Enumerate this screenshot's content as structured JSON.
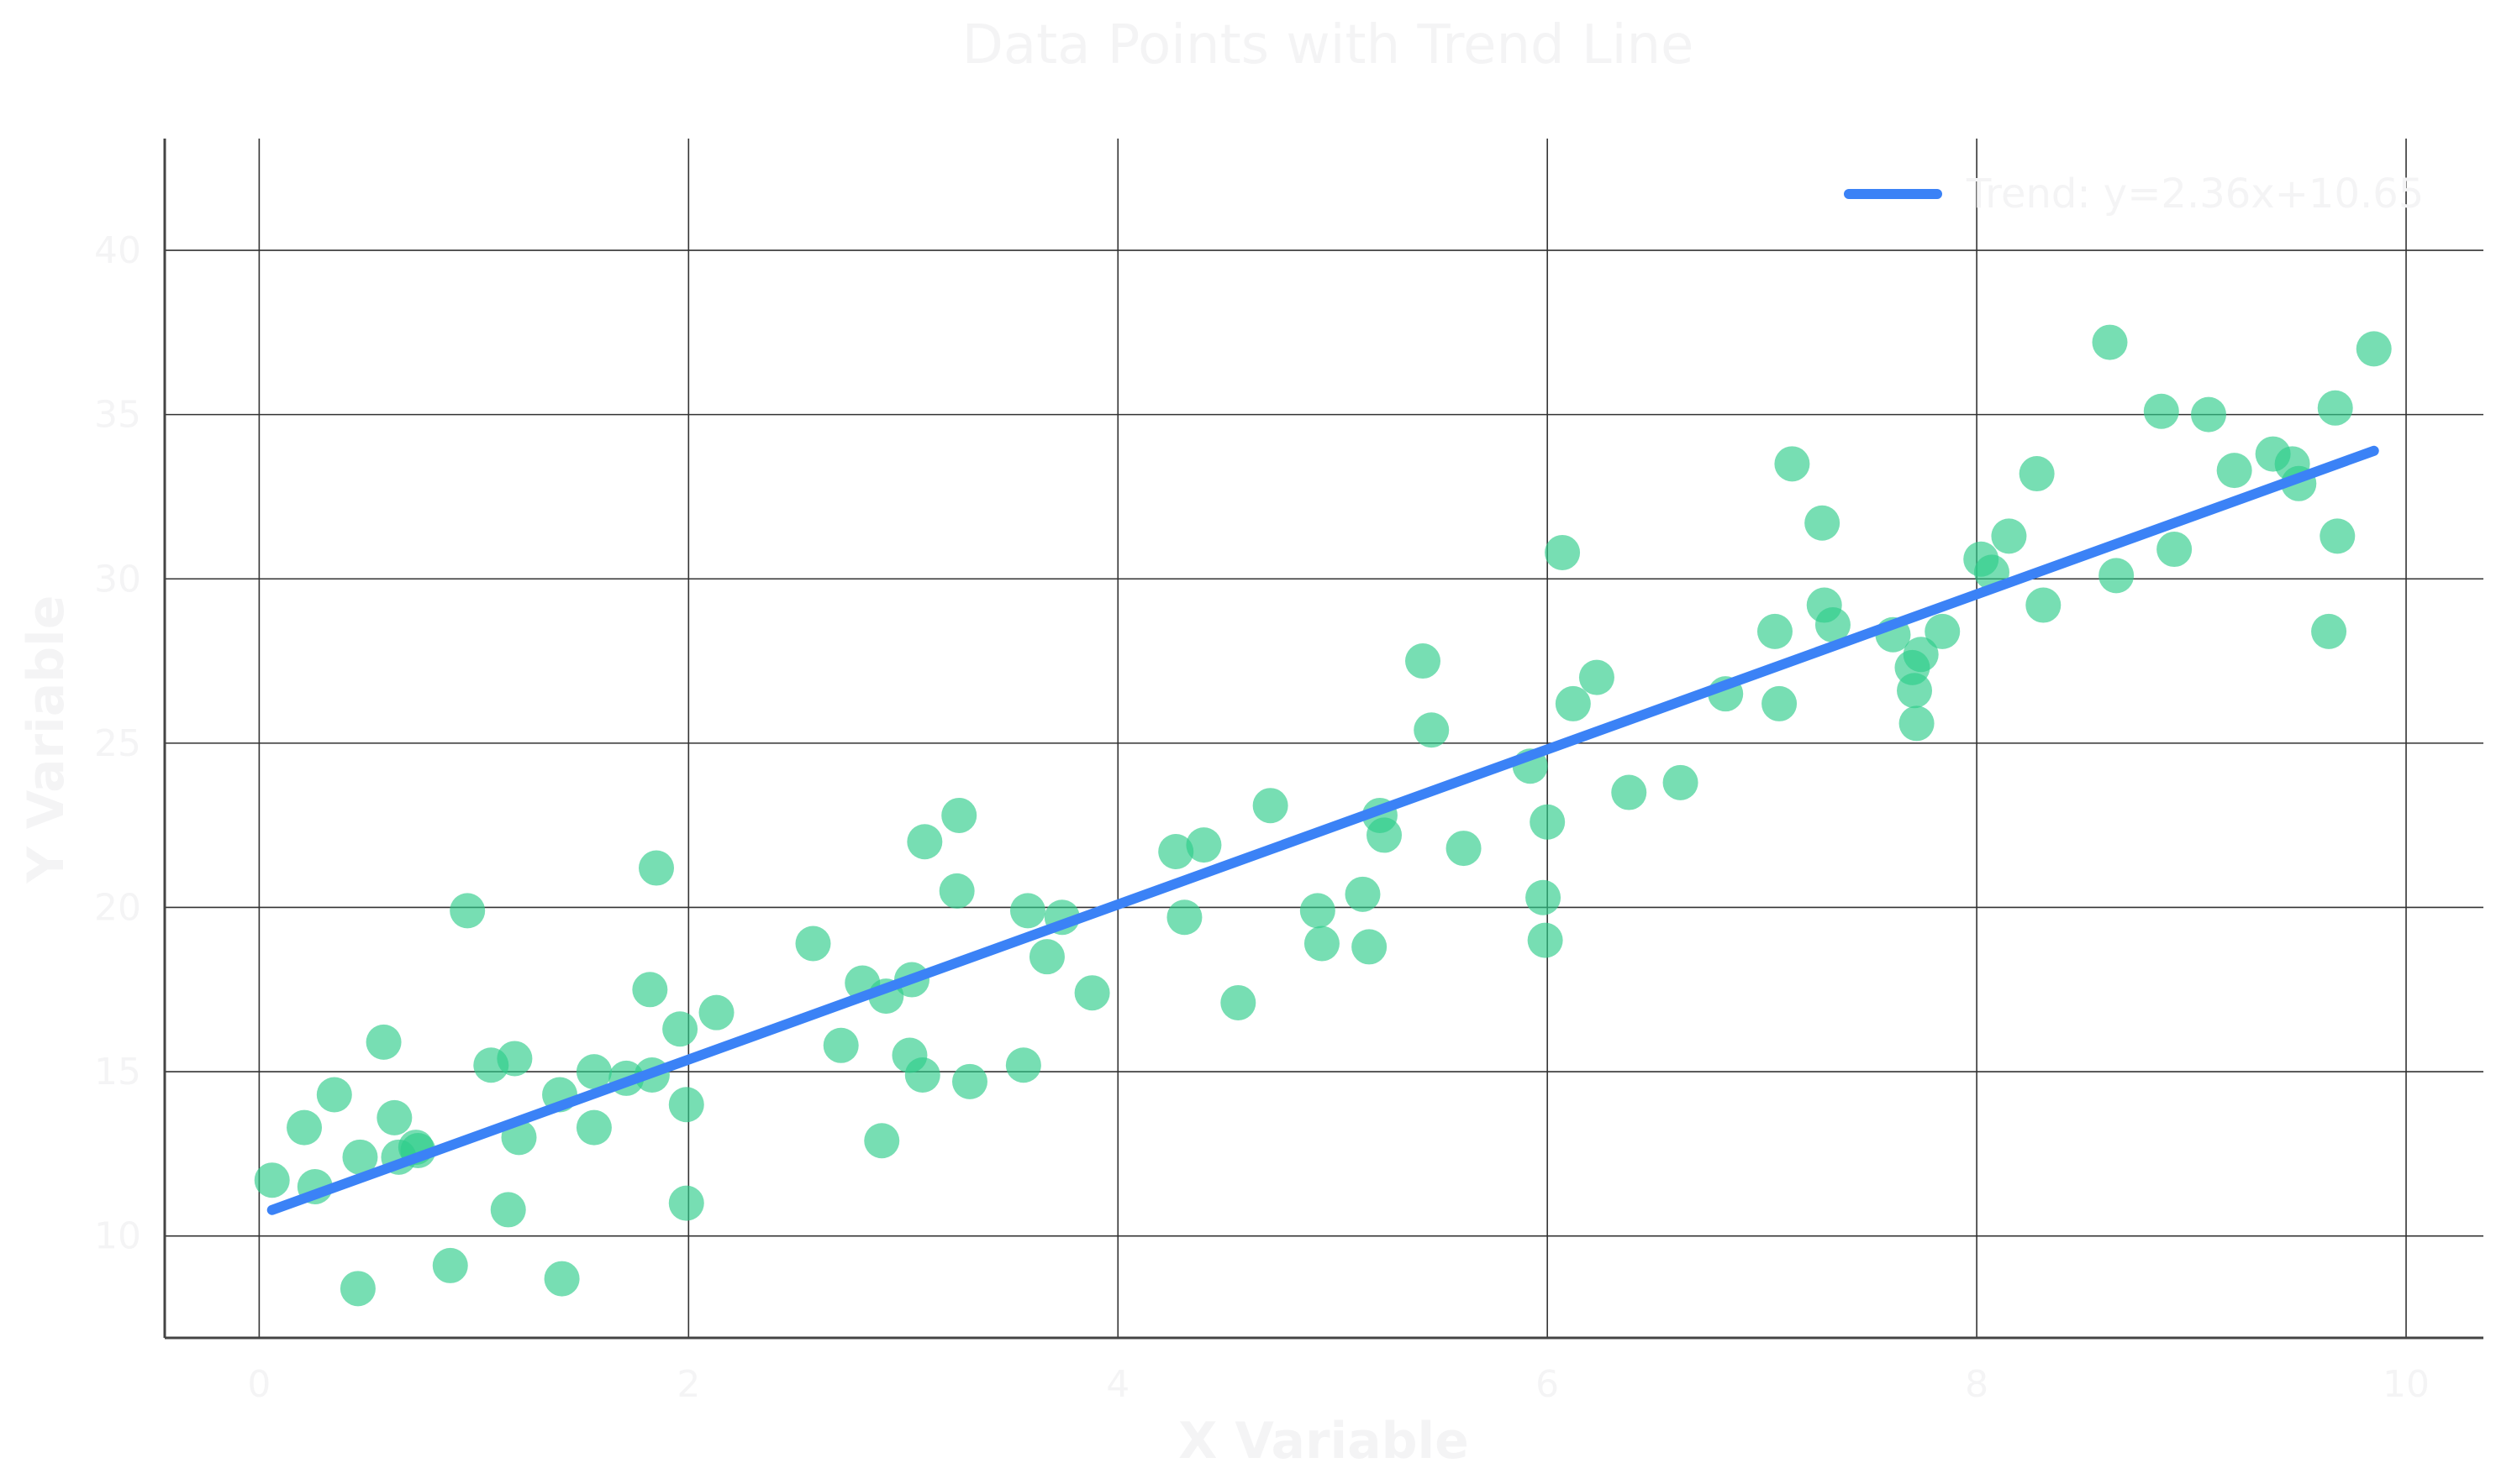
{
  "chart_data": {
    "type": "scatter",
    "title": "Data Points with Trend Line",
    "xlabel": "X Variable",
    "ylabel": "Y Variable",
    "xlim": [
      -0.44,
      10.36
    ],
    "ylim": [
      6.9,
      43.4
    ],
    "xticks": [
      0,
      2,
      4,
      6,
      8,
      10
    ],
    "yticks": [
      10,
      15,
      20,
      25,
      30,
      35,
      40
    ],
    "grid": true,
    "legend_position": "top-right",
    "colors": {
      "points": "#2ecc8a",
      "trend": "#3b82f6",
      "grid": "#333333",
      "axis": "#444444"
    },
    "series": [
      {
        "name": "Data Points",
        "kind": "scatter",
        "x": [
          0.06,
          0.21,
          0.26,
          0.35,
          0.46,
          0.47,
          0.58,
          0.63,
          0.65,
          0.73,
          0.74,
          0.89,
          0.97,
          1.08,
          1.16,
          1.19,
          1.21,
          1.4,
          1.41,
          1.56,
          1.56,
          1.71,
          1.82,
          1.83,
          1.85,
          1.96,
          1.99,
          1.99,
          2.13,
          2.58,
          2.71,
          2.81,
          2.9,
          2.92,
          3.03,
          3.04,
          3.09,
          3.1,
          3.25,
          3.26,
          3.31,
          3.56,
          3.58,
          3.67,
          3.74,
          3.88,
          4.27,
          4.31,
          4.4,
          4.56,
          4.71,
          4.93,
          4.95,
          5.14,
          5.17,
          5.22,
          5.24,
          5.42,
          5.46,
          5.61,
          5.92,
          5.98,
          5.99,
          6.0,
          6.07,
          6.12,
          6.23,
          6.38,
          6.62,
          6.83,
          7.06,
          7.08,
          7.14,
          7.28,
          7.29,
          7.33,
          7.61,
          7.7,
          7.71,
          7.72,
          7.74,
          7.84,
          8.02,
          8.07,
          8.15,
          8.28,
          8.31,
          8.62,
          8.65,
          8.86,
          8.92,
          9.08,
          9.2,
          9.38,
          9.47,
          9.5,
          9.64,
          9.67,
          9.68,
          9.85
        ],
        "y": [
          11.7,
          13.3,
          11.5,
          14.3,
          8.4,
          12.4,
          15.9,
          13.6,
          12.4,
          12.7,
          12.6,
          9.1,
          19.9,
          15.2,
          10.8,
          15.4,
          13.0,
          14.3,
          8.7,
          13.3,
          15.0,
          14.8,
          17.5,
          14.9,
          21.2,
          16.3,
          11.0,
          14.0,
          16.8,
          18.9,
          15.8,
          17.7,
          12.9,
          17.3,
          15.5,
          17.8,
          14.9,
          22.0,
          20.5,
          22.8,
          14.7,
          15.2,
          19.9,
          18.5,
          19.7,
          17.4,
          21.7,
          19.7,
          21.9,
          17.1,
          23.1,
          19.9,
          18.9,
          20.4,
          18.8,
          22.8,
          22.2,
          27.5,
          25.4,
          21.8,
          24.3,
          20.3,
          19.0,
          22.6,
          30.8,
          26.2,
          27.0,
          23.5,
          23.8,
          26.5,
          28.4,
          26.2,
          33.5,
          31.7,
          29.2,
          28.6,
          28.3,
          27.3,
          26.6,
          25.6,
          27.7,
          28.4,
          30.6,
          30.2,
          31.3,
          33.2,
          29.2,
          37.2,
          30.1,
          35.1,
          30.9,
          35.0,
          33.3,
          33.8,
          33.5,
          32.9,
          28.4,
          35.2,
          31.3,
          37.0
        ]
      },
      {
        "name": "Trend: y=2.36x+10.65",
        "kind": "line",
        "slope": 2.36,
        "intercept": 10.65,
        "x_range": [
          0.06,
          9.85
        ]
      }
    ]
  }
}
